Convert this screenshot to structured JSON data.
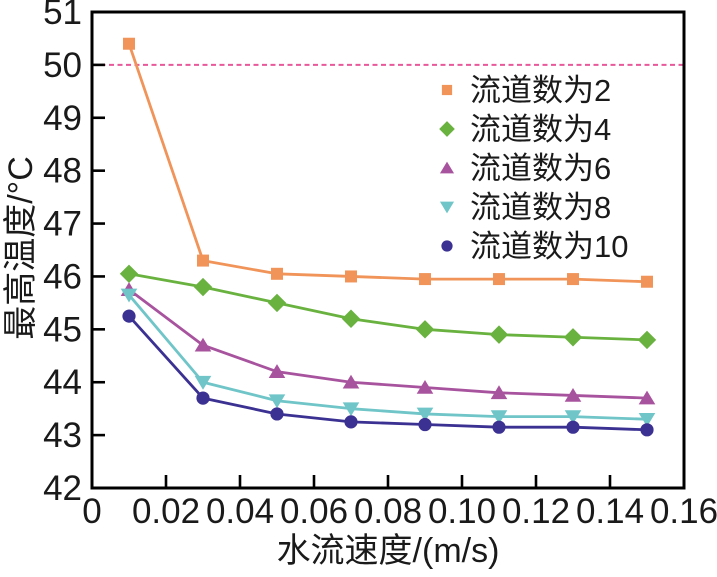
{
  "chart_data": {
    "type": "line",
    "title": "",
    "xlabel": "水流速度/(m/s)",
    "ylabel": "最高温度/°C",
    "xlim": [
      0,
      0.16
    ],
    "ylim": [
      42,
      51
    ],
    "grid": false,
    "legend_position": "upper-right-inside",
    "x_tick_values": [
      0,
      0.02,
      0.04,
      0.06,
      0.08,
      0.1,
      0.12,
      0.14,
      0.16
    ],
    "x_tick_labels": [
      "0",
      "0.02",
      "0.04",
      "0.06",
      "0.08",
      "0.10",
      "0.12",
      "0.14",
      "0.16"
    ],
    "y_tick_values": [
      42,
      43,
      44,
      45,
      46,
      47,
      48,
      49,
      50,
      51
    ],
    "y_tick_labels": [
      "42",
      "43",
      "44",
      "45",
      "46",
      "47",
      "48",
      "49",
      "50",
      "51"
    ],
    "reference_line": {
      "y": 50,
      "color": "#e8589b",
      "style": "dashed"
    },
    "x": [
      0.01,
      0.03,
      0.05,
      0.07,
      0.09,
      0.11,
      0.13,
      0.15
    ],
    "series": [
      {
        "name": "流道数为2",
        "marker": "square",
        "color": "#f0945a",
        "values": [
          50.4,
          46.3,
          46.05,
          46.0,
          45.95,
          45.95,
          45.95,
          45.9
        ]
      },
      {
        "name": "流道数为4",
        "marker": "diamond",
        "color": "#6ab240",
        "values": [
          46.05,
          45.8,
          45.5,
          45.2,
          45.0,
          44.9,
          44.85,
          44.8
        ]
      },
      {
        "name": "流道数为6",
        "marker": "triangle-up",
        "color": "#a8539e",
        "values": [
          45.75,
          44.7,
          44.2,
          44.0,
          43.9,
          43.8,
          43.75,
          43.7
        ]
      },
      {
        "name": "流道数为8",
        "marker": "triangle-down",
        "color": "#6fc5c8",
        "values": [
          45.65,
          44.0,
          43.65,
          43.5,
          43.4,
          43.35,
          43.35,
          43.3
        ]
      },
      {
        "name": "流道数为10",
        "marker": "circle",
        "color": "#3b3192",
        "values": [
          45.25,
          43.7,
          43.4,
          43.25,
          43.2,
          43.15,
          43.15,
          43.1
        ]
      }
    ],
    "axis_color": "#000000",
    "text_color": "#1a1a1a",
    "background": "#ffffff"
  }
}
